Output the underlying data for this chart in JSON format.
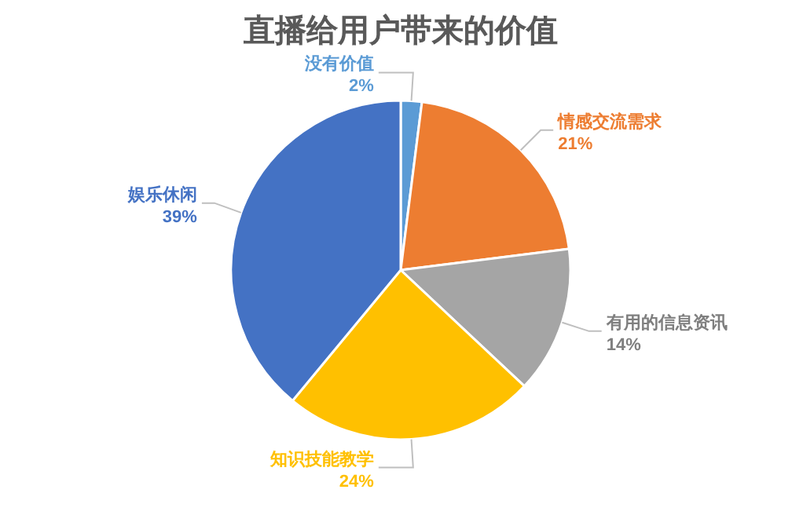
{
  "chart_data": {
    "type": "pie",
    "title": "直播给用户带来的价值",
    "categories": [
      "没有价值",
      "情感交流需求",
      "有用的信息资讯",
      "知识技能教学",
      "娱乐休闲"
    ],
    "values": [
      2,
      21,
      14,
      24,
      39
    ],
    "value_labels": [
      "2%",
      "21%",
      "14%",
      "24%",
      "39%"
    ],
    "colors": [
      "#5b9bd5",
      "#ed7d31",
      "#a5a5a5",
      "#ffc000",
      "#4472c4"
    ]
  }
}
